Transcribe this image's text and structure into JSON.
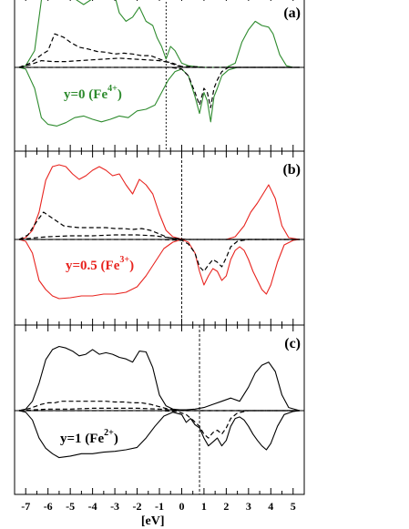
{
  "chart_data": [
    {
      "type": "line",
      "tag": "(a)",
      "annotation": {
        "text": "y=0   (Fe",
        "sup": "4+",
        "close": ")",
        "color": "#2e8b2e"
      },
      "xlim": [
        -7.5,
        5.5
      ],
      "fermi_marker_x": -0.7,
      "series": [
        {
          "style": "solid",
          "color": "#2e8b2e",
          "spin": "up",
          "x": [
            -7.3,
            -7.0,
            -6.6,
            -6.3,
            -6.1,
            -5.9,
            -5.6,
            -5.2,
            -4.8,
            -4.4,
            -4.0,
            -3.6,
            -3.2,
            -3.0,
            -2.8,
            -2.5,
            -2.2,
            -1.9,
            -1.6,
            -1.3,
            -1.1,
            -0.9,
            -0.7,
            -0.5,
            -0.3,
            0.0,
            0.3,
            0.6,
            1.0,
            1.5,
            2.0,
            2.4,
            2.7,
            3.0,
            3.3,
            3.6,
            3.9,
            4.1,
            4.4,
            4.7,
            5.0,
            5.3
          ],
          "y": [
            0,
            0.02,
            0.2,
            0.8,
            0.95,
            1.0,
            0.98,
            0.92,
            0.82,
            0.75,
            0.82,
            0.92,
            0.94,
            0.85,
            0.65,
            0.55,
            0.6,
            0.72,
            0.55,
            0.5,
            0.35,
            0.25,
            0.1,
            0.25,
            0.2,
            0.05,
            0.02,
            0.01,
            0,
            0,
            0,
            0.05,
            0.3,
            0.45,
            0.55,
            0.5,
            0.48,
            0.4,
            0.15,
            0.02,
            0,
            0
          ]
        },
        {
          "style": "solid",
          "color": "#2e8b2e",
          "spin": "down",
          "x": [
            -7.3,
            -7.0,
            -6.6,
            -6.3,
            -6.0,
            -5.6,
            -5.2,
            -4.8,
            -4.4,
            -4.0,
            -3.6,
            -3.2,
            -2.8,
            -2.4,
            -2.0,
            -1.6,
            -1.2,
            -0.9,
            -0.6,
            -0.3,
            0.0,
            0.3,
            0.6,
            0.8,
            1.0,
            1.15,
            1.3,
            1.45,
            1.6,
            1.8,
            2.1,
            2.5,
            3.0,
            3.5,
            4.0,
            4.5,
            5.0,
            5.3
          ],
          "y": [
            0,
            -0.02,
            -0.25,
            -0.6,
            -0.68,
            -0.7,
            -0.66,
            -0.6,
            -0.58,
            -0.62,
            -0.65,
            -0.62,
            -0.58,
            -0.6,
            -0.52,
            -0.5,
            -0.45,
            -0.3,
            -0.15,
            -0.05,
            -0.02,
            -0.1,
            -0.35,
            -0.55,
            -0.3,
            -0.4,
            -0.65,
            -0.35,
            -0.25,
            -0.1,
            -0.03,
            0,
            0,
            0,
            0,
            0,
            0,
            0
          ]
        },
        {
          "style": "dashed",
          "color": "#000000",
          "spin": "up",
          "x": [
            -7.3,
            -6.8,
            -6.3,
            -6.0,
            -5.7,
            -5.3,
            -5.0,
            -4.6,
            -4.2,
            -3.8,
            -3.4,
            -3.0,
            -2.6,
            -2.2,
            -1.8,
            -1.4,
            -1.0,
            -0.7,
            -0.4,
            0.0,
            0.5,
            1.0,
            2.0,
            3.0,
            4.0,
            5.3
          ],
          "y": [
            0,
            0.05,
            0.15,
            0.2,
            0.4,
            0.36,
            0.3,
            0.24,
            0.22,
            0.19,
            0.18,
            0.16,
            0.17,
            0.16,
            0.14,
            0.14,
            0.1,
            0.07,
            0.05,
            0.01,
            0.01,
            0,
            0,
            0,
            0,
            0
          ]
        },
        {
          "style": "dashed",
          "color": "#000000",
          "spin": "up",
          "x": [
            -7.3,
            -6.8,
            -6.3,
            -5.8,
            -5.2,
            -4.6,
            -4.0,
            -3.4,
            -2.8,
            -2.2,
            -1.6,
            -1.0,
            -0.6,
            -0.2,
            0.2,
            0.6,
            1.0,
            2.0,
            3.0,
            4.0,
            5.3
          ],
          "y": [
            0,
            0.03,
            0.08,
            0.07,
            0.07,
            0.08,
            0.09,
            0.1,
            0.11,
            0.1,
            0.09,
            0.08,
            0.06,
            0.02,
            0,
            0,
            0,
            0,
            0,
            0,
            0
          ]
        },
        {
          "style": "dashed",
          "color": "#000000",
          "spin": "down",
          "x": [
            -7.3,
            -2.0,
            -0.5,
            0.0,
            0.3,
            0.6,
            0.8,
            1.0,
            1.15,
            1.3,
            1.45,
            1.6,
            1.8,
            2.1,
            3.0,
            5.3
          ],
          "y": [
            0,
            0,
            0,
            -0.02,
            -0.1,
            -0.3,
            -0.45,
            -0.25,
            -0.3,
            -0.48,
            -0.25,
            -0.15,
            -0.05,
            0,
            0,
            0
          ]
        }
      ]
    },
    {
      "type": "line",
      "tag": "(b)",
      "annotation": {
        "text": "y=0.5 (Fe",
        "sup": "3+",
        "close": ")",
        "color": "#e8241f"
      },
      "xlim": [
        -7.5,
        5.5
      ],
      "fermi_marker_x": 0.0,
      "series": [
        {
          "style": "solid",
          "color": "#e8241f",
          "spin": "up",
          "x": [
            -7.3,
            -7.0,
            -6.7,
            -6.4,
            -6.1,
            -5.8,
            -5.5,
            -5.2,
            -4.9,
            -4.6,
            -4.3,
            -4.0,
            -3.7,
            -3.4,
            -3.1,
            -2.8,
            -2.5,
            -2.2,
            -1.9,
            -1.6,
            -1.3,
            -1.0,
            -0.7,
            -0.4,
            -0.1,
            0.2,
            0.6,
            1.0,
            1.5,
            2.0,
            2.4,
            2.8,
            3.1,
            3.4,
            3.7,
            3.9,
            4.2,
            4.5,
            4.8,
            5.3
          ],
          "y": [
            0,
            0.02,
            0.1,
            0.3,
            0.65,
            0.8,
            0.82,
            0.8,
            0.72,
            0.66,
            0.7,
            0.76,
            0.8,
            0.76,
            0.7,
            0.72,
            0.6,
            0.5,
            0.66,
            0.6,
            0.5,
            0.28,
            0.1,
            0.03,
            0.01,
            0,
            0,
            0,
            0,
            0,
            0.03,
            0.15,
            0.3,
            0.4,
            0.52,
            0.6,
            0.45,
            0.15,
            0.02,
            0
          ]
        },
        {
          "style": "solid",
          "color": "#e8241f",
          "spin": "down",
          "x": [
            -7.3,
            -7.0,
            -6.7,
            -6.4,
            -6.1,
            -5.8,
            -5.5,
            -5.0,
            -4.5,
            -4.0,
            -3.5,
            -3.0,
            -2.5,
            -2.0,
            -1.6,
            -1.2,
            -0.8,
            -0.4,
            0.0,
            0.3,
            0.6,
            0.8,
            1.0,
            1.2,
            1.4,
            1.6,
            1.8,
            2.0,
            2.2,
            2.4,
            2.6,
            2.8,
            3.0,
            3.2,
            3.4,
            3.6,
            3.8,
            4.0,
            4.3,
            4.6,
            5.0,
            5.3
          ],
          "y": [
            0,
            -0.02,
            -0.15,
            -0.45,
            -0.55,
            -0.62,
            -0.65,
            -0.64,
            -0.62,
            -0.62,
            -0.6,
            -0.6,
            -0.58,
            -0.52,
            -0.4,
            -0.25,
            -0.1,
            -0.03,
            0,
            -0.03,
            -0.15,
            -0.35,
            -0.5,
            -0.4,
            -0.32,
            -0.35,
            -0.45,
            -0.4,
            -0.22,
            -0.12,
            -0.08,
            -0.12,
            -0.22,
            -0.35,
            -0.45,
            -0.55,
            -0.6,
            -0.5,
            -0.25,
            -0.06,
            -0.01,
            0
          ]
        },
        {
          "style": "dashed",
          "color": "#000000",
          "spin": "up",
          "x": [
            -7.3,
            -6.9,
            -6.5,
            -6.2,
            -5.9,
            -5.6,
            -5.3,
            -5.0,
            -4.6,
            -4.2,
            -3.8,
            -3.4,
            -3.0,
            -2.6,
            -2.2,
            -1.8,
            -1.4,
            -1.0,
            -0.6,
            -0.2,
            0.2,
            1.0,
            2.0,
            3.0,
            4.0,
            5.3
          ],
          "y": [
            0,
            0.05,
            0.2,
            0.3,
            0.25,
            0.2,
            0.15,
            0.14,
            0.13,
            0.13,
            0.13,
            0.13,
            0.12,
            0.12,
            0.11,
            0.12,
            0.1,
            0.06,
            0.02,
            0.01,
            0,
            0,
            0,
            0,
            0,
            0
          ]
        },
        {
          "style": "dashed",
          "color": "#000000",
          "spin": "up",
          "x": [
            -7.3,
            -6.5,
            -6.0,
            -5.0,
            -4.0,
            -3.0,
            -2.0,
            -1.2,
            -0.6,
            0.0,
            1.0,
            2.0,
            3.0,
            4.0,
            5.3
          ],
          "y": [
            0,
            0.02,
            0.03,
            0.04,
            0.04,
            0.05,
            0.05,
            0.04,
            0.02,
            0,
            0,
            0,
            0,
            0,
            0
          ]
        },
        {
          "style": "dashed",
          "color": "#000000",
          "spin": "down",
          "x": [
            -7.3,
            -1.0,
            0.0,
            0.3,
            0.6,
            0.8,
            1.0,
            1.2,
            1.4,
            1.6,
            1.8,
            2.0,
            2.2,
            2.5,
            3.0,
            5.3
          ],
          "y": [
            0,
            0,
            -0.01,
            -0.05,
            -0.15,
            -0.3,
            -0.35,
            -0.28,
            -0.22,
            -0.25,
            -0.3,
            -0.2,
            -0.08,
            -0.02,
            0,
            0
          ]
        }
      ]
    },
    {
      "type": "line",
      "tag": "(c)",
      "annotation": {
        "text": "y=1    (Fe",
        "sup": "2+",
        "close": ")",
        "color": "#000000"
      },
      "xlim": [
        -7.5,
        5.5
      ],
      "fermi_marker_x": 0.8,
      "series": [
        {
          "style": "solid",
          "color": "#000000",
          "spin": "up",
          "x": [
            -7.3,
            -7.0,
            -6.7,
            -6.4,
            -6.1,
            -5.8,
            -5.5,
            -5.2,
            -4.9,
            -4.6,
            -4.3,
            -4.0,
            -3.7,
            -3.4,
            -3.1,
            -2.8,
            -2.5,
            -2.2,
            -1.9,
            -1.6,
            -1.3,
            -1.0,
            -0.7,
            -0.4,
            -0.1,
            0.2,
            0.6,
            1.0,
            1.4,
            1.8,
            2.2,
            2.6,
            3.0,
            3.3,
            3.6,
            3.9,
            4.2,
            4.5,
            4.8,
            5.3
          ],
          "y": [
            0,
            0.02,
            0.12,
            0.35,
            0.65,
            0.78,
            0.82,
            0.8,
            0.76,
            0.7,
            0.72,
            0.78,
            0.72,
            0.74,
            0.72,
            0.68,
            0.66,
            0.62,
            0.76,
            0.75,
            0.55,
            0.2,
            0.06,
            0.02,
            0.01,
            0.01,
            0.02,
            0.04,
            0.08,
            0.12,
            0.16,
            0.12,
            0.3,
            0.48,
            0.58,
            0.62,
            0.5,
            0.2,
            0.04,
            0
          ]
        },
        {
          "style": "solid",
          "color": "#000000",
          "spin": "down",
          "x": [
            -7.3,
            -7.0,
            -6.7,
            -6.4,
            -6.1,
            -5.8,
            -5.5,
            -5.0,
            -4.5,
            -4.0,
            -3.5,
            -3.0,
            -2.5,
            -2.0,
            -1.6,
            -1.2,
            -0.8,
            -0.4,
            0.0,
            0.2,
            0.4,
            0.6,
            0.8,
            1.0,
            1.2,
            1.4,
            1.6,
            1.8,
            2.0,
            2.2,
            2.4,
            2.6,
            2.8,
            3.0,
            3.2,
            3.4,
            3.6,
            3.8,
            4.0,
            4.3,
            4.6,
            5.0,
            5.3
          ],
          "y": [
            0,
            -0.02,
            -0.12,
            -0.35,
            -0.48,
            -0.55,
            -0.6,
            -0.58,
            -0.55,
            -0.55,
            -0.53,
            -0.52,
            -0.5,
            -0.47,
            -0.35,
            -0.2,
            -0.07,
            -0.02,
            -0.05,
            -0.15,
            -0.1,
            -0.18,
            -0.22,
            -0.35,
            -0.45,
            -0.4,
            -0.35,
            -0.45,
            -0.38,
            -0.2,
            -0.1,
            -0.08,
            -0.12,
            -0.2,
            -0.3,
            -0.38,
            -0.45,
            -0.5,
            -0.42,
            -0.2,
            -0.05,
            -0.01,
            0
          ]
        },
        {
          "style": "dashed",
          "color": "#000000",
          "spin": "up",
          "x": [
            -7.3,
            -6.8,
            -6.3,
            -6.0,
            -5.7,
            -5.4,
            -5.0,
            -4.6,
            -4.2,
            -3.8,
            -3.4,
            -3.0,
            -2.6,
            -2.2,
            -1.8,
            -1.4,
            -1.0,
            -0.6,
            -0.2,
            0.2,
            1.0,
            2.0,
            3.0,
            4.0,
            5.3
          ],
          "y": [
            0,
            0.03,
            0.08,
            0.1,
            0.1,
            0.12,
            0.12,
            0.12,
            0.12,
            0.12,
            0.12,
            0.11,
            0.11,
            0.1,
            0.1,
            0.08,
            0.05,
            0.02,
            0.01,
            0,
            0,
            0,
            0,
            0,
            0
          ]
        },
        {
          "style": "dashed",
          "color": "#000000",
          "spin": "up",
          "x": [
            -7.3,
            -6.0,
            -5.0,
            -4.0,
            -3.0,
            -2.0,
            -1.0,
            0.0,
            1.0,
            2.0,
            3.0,
            4.0,
            5.3
          ],
          "y": [
            0,
            0.02,
            0.02,
            0.03,
            0.03,
            0.03,
            0.02,
            0,
            0,
            0,
            0,
            0,
            0
          ]
        },
        {
          "style": "dashed",
          "color": "#000000",
          "spin": "down",
          "x": [
            -7.3,
            -1.0,
            -0.2,
            0.2,
            0.5,
            0.8,
            1.0,
            1.2,
            1.4,
            1.6,
            1.8,
            2.0,
            2.2,
            2.5,
            3.0,
            5.3
          ],
          "y": [
            0,
            0,
            -0.01,
            -0.05,
            -0.12,
            -0.2,
            -0.3,
            -0.35,
            -0.28,
            -0.25,
            -0.3,
            -0.22,
            -0.1,
            -0.03,
            0,
            0
          ]
        }
      ]
    }
  ],
  "x_axis": {
    "ticks": [
      -7,
      -6,
      -5,
      -4,
      -3,
      -2,
      -1,
      0,
      1,
      2,
      3,
      4,
      5
    ],
    "tick_labels": [
      "-7",
      "-6",
      "-5",
      "-4",
      "-3",
      "-2",
      "-1",
      "0",
      "1",
      "2",
      "3",
      "4",
      "5"
    ],
    "label": "[eV]"
  }
}
